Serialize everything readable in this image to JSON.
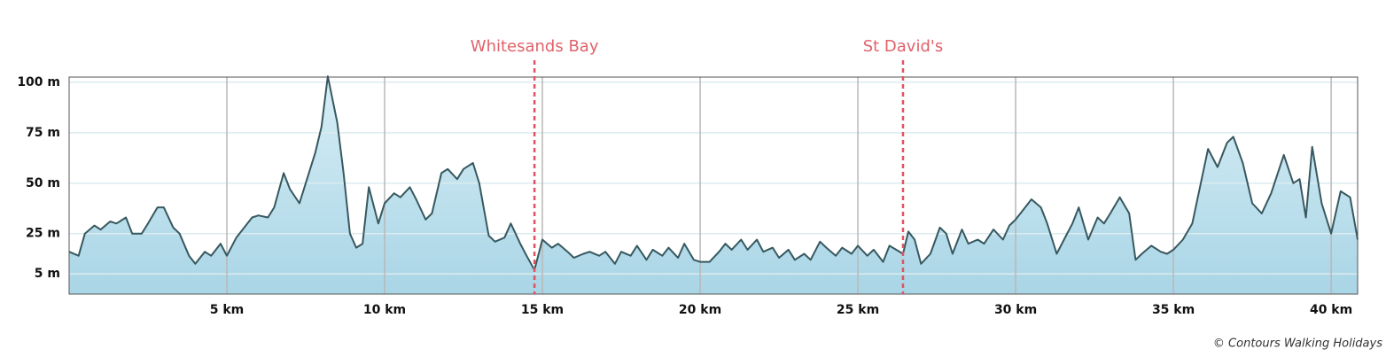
{
  "chart_data": {
    "type": "area",
    "x": [
      0,
      0.3,
      0.5,
      0.8,
      1.0,
      1.3,
      1.5,
      1.8,
      2.0,
      2.3,
      2.5,
      2.8,
      3.0,
      3.3,
      3.5,
      3.8,
      4.0,
      4.3,
      4.5,
      4.8,
      5.0,
      5.3,
      5.5,
      5.8,
      6.0,
      6.3,
      6.5,
      6.8,
      7.0,
      7.3,
      7.5,
      7.8,
      8.0,
      8.2,
      8.5,
      8.7,
      8.9,
      9.1,
      9.3,
      9.5,
      9.8,
      10.0,
      10.3,
      10.5,
      10.8,
      11.0,
      11.3,
      11.5,
      11.8,
      12.0,
      12.3,
      12.5,
      12.8,
      13.0,
      13.3,
      13.5,
      13.8,
      14.0,
      14.3,
      14.5,
      14.75,
      15.0,
      15.3,
      15.5,
      15.8,
      16.0,
      16.3,
      16.5,
      16.8,
      17.0,
      17.3,
      17.5,
      17.8,
      18.0,
      18.3,
      18.5,
      18.8,
      19.0,
      19.3,
      19.5,
      19.8,
      20.0,
      20.3,
      20.6,
      20.8,
      21.0,
      21.3,
      21.5,
      21.8,
      22.0,
      22.3,
      22.5,
      22.8,
      23.0,
      23.3,
      23.5,
      23.8,
      24.0,
      24.3,
      24.5,
      24.8,
      25.0,
      25.3,
      25.5,
      25.8,
      26.0,
      26.43,
      26.6,
      26.8,
      27.0,
      27.3,
      27.6,
      27.8,
      28.0,
      28.3,
      28.5,
      28.8,
      29.0,
      29.3,
      29.6,
      29.8,
      30.0,
      30.3,
      30.5,
      30.8,
      31.0,
      31.3,
      31.6,
      31.8,
      32.0,
      32.3,
      32.6,
      32.8,
      33.0,
      33.3,
      33.6,
      33.8,
      34.0,
      34.3,
      34.6,
      34.8,
      35.0,
      35.3,
      35.6,
      35.8,
      36.1,
      36.4,
      36.7,
      36.9,
      37.2,
      37.5,
      37.8,
      38.1,
      38.5,
      38.8,
      39.0,
      39.2,
      39.4,
      39.7,
      40.0,
      40.3,
      40.6,
      40.84
    ],
    "values": [
      16,
      14,
      25,
      29,
      27,
      31,
      30,
      33,
      25,
      25,
      30,
      38,
      38,
      28,
      25,
      14,
      10,
      16,
      14,
      20,
      14,
      23,
      27,
      33,
      34,
      33,
      38,
      55,
      47,
      40,
      50,
      65,
      78,
      103,
      80,
      55,
      25,
      18,
      20,
      48,
      30,
      40,
      45,
      43,
      48,
      42,
      32,
      35,
      55,
      57,
      52,
      57,
      60,
      50,
      24,
      21,
      23,
      30,
      20,
      14,
      7,
      22,
      18,
      20,
      16,
      13,
      15,
      16,
      14,
      16,
      10,
      16,
      14,
      19,
      12,
      17,
      14,
      18,
      13,
      20,
      12,
      11,
      11,
      16,
      20,
      17,
      22,
      17,
      22,
      16,
      18,
      13,
      17,
      12,
      15,
      12,
      21,
      18,
      14,
      18,
      15,
      19,
      14,
      17,
      11,
      19,
      15,
      26,
      22,
      10,
      15,
      28,
      25,
      15,
      27,
      20,
      22,
      20,
      27,
      22,
      29,
      32,
      38,
      42,
      38,
      30,
      15,
      24,
      30,
      38,
      22,
      33,
      30,
      35,
      43,
      35,
      12,
      15,
      19,
      16,
      15,
      17,
      22,
      30,
      45,
      67,
      58,
      70,
      73,
      60,
      40,
      35,
      45,
      64,
      50,
      52,
      33,
      68,
      40,
      25,
      46,
      43,
      22
    ],
    "color": "#37585f",
    "xlim": [
      0,
      40.84
    ],
    "ylim": [
      -5,
      102.6
    ],
    "xticks": [
      {
        "value": 5,
        "label": "5 km"
      },
      {
        "value": 10,
        "label": "10 km"
      },
      {
        "value": 15,
        "label": "15 km"
      },
      {
        "value": 20,
        "label": "20 km"
      },
      {
        "value": 25,
        "label": "25 km"
      },
      {
        "value": 30,
        "label": "30 km"
      },
      {
        "value": 35,
        "label": "35 km"
      },
      {
        "value": 40,
        "label": "40 km"
      }
    ],
    "yticks": [
      {
        "value": 5,
        "label": "5 m"
      },
      {
        "value": 25,
        "label": "25 m"
      },
      {
        "value": 50,
        "label": "50 m"
      },
      {
        "value": 75,
        "label": "75 m"
      },
      {
        "value": 100,
        "label": "100 m"
      }
    ],
    "grid": true,
    "annotations": [
      {
        "label": "Whitesands Bay",
        "x": 14.75
      },
      {
        "label": "St David's",
        "x": 26.43
      }
    ],
    "credit": "© Contours Walking Holidays"
  }
}
